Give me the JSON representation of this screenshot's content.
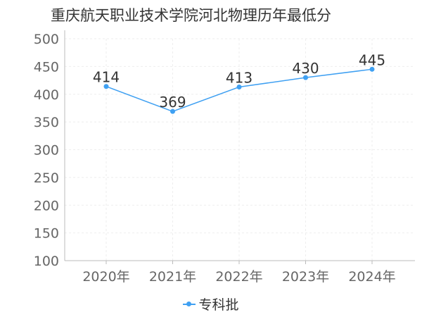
{
  "chart_data": {
    "type": "line",
    "title": "重庆航天职业技术学院河北物理历年最低分",
    "categories": [
      "2020年",
      "2021年",
      "2022年",
      "2023年",
      "2024年"
    ],
    "series": [
      {
        "name": "专科批",
        "values": [
          414,
          369,
          413,
          430,
          445
        ],
        "color": "#3fa0f2"
      }
    ],
    "ylim": [
      100,
      500
    ],
    "yticks": [
      100,
      150,
      200,
      250,
      300,
      350,
      400,
      450,
      500
    ],
    "grid": true,
    "legend_position": "bottom-center",
    "data_labels": true
  }
}
